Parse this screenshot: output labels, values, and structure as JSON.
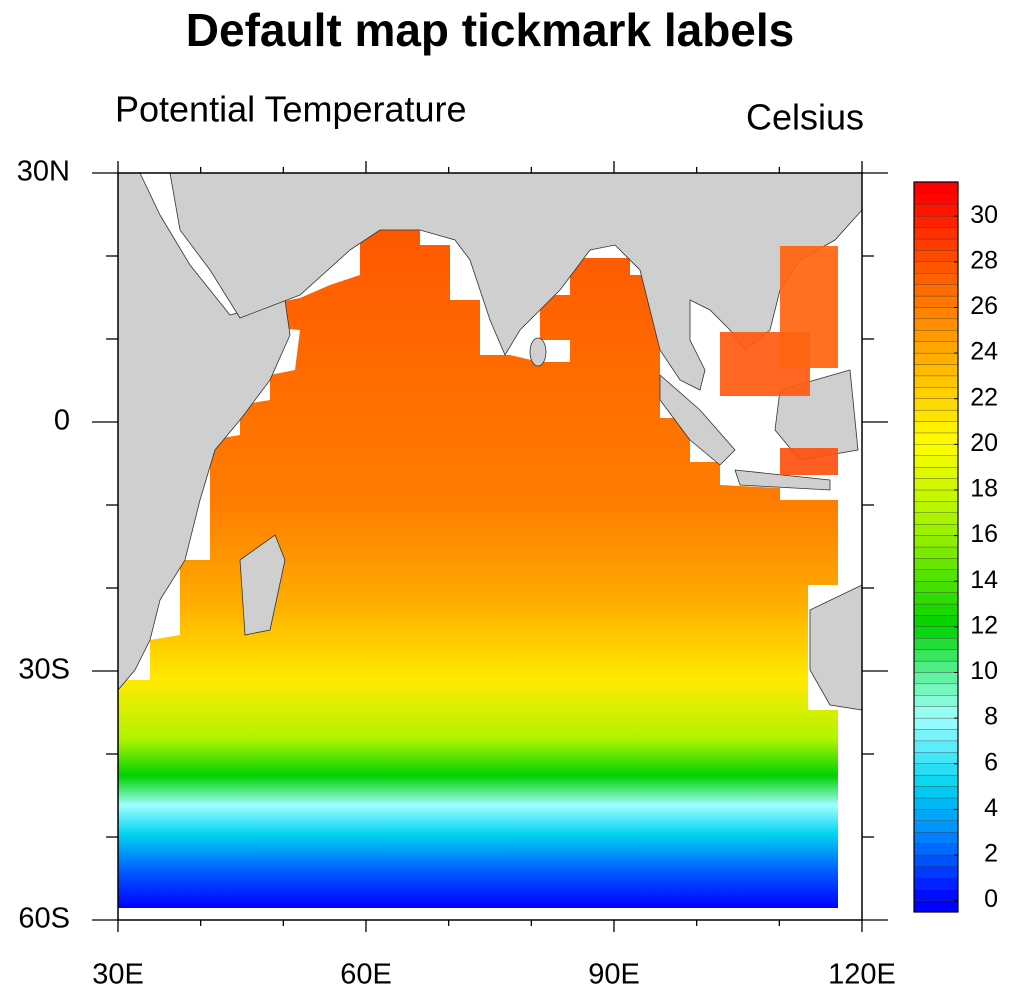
{
  "chart_data": {
    "type": "contour-map",
    "title": "Default map tickmark labels",
    "subtitle_left": "Potential Temperature",
    "subtitle_right": "Celsius",
    "xlim": [
      30,
      120
    ],
    "xticks": [
      {
        "value": 30,
        "label": "30E"
      },
      {
        "value": 60,
        "label": "60E"
      },
      {
        "value": 90,
        "label": "90E"
      },
      {
        "value": 120,
        "label": "120E"
      }
    ],
    "xminor": [
      40,
      50,
      70,
      80,
      100,
      110
    ],
    "ylim": [
      -60,
      30
    ],
    "yticks": [
      {
        "value": 30,
        "label": "30N"
      },
      0,
      {
        "value": -30,
        "label": "30S"
      },
      {
        "value": -60,
        "label": "60S"
      }
    ],
    "yminor": [
      20,
      10,
      -10,
      -20,
      -40,
      -50
    ],
    "colorbar_lim": [
      -0.5,
      31.5
    ],
    "colorbar_ticks": [
      0,
      2,
      4,
      6,
      8,
      10,
      12,
      14,
      16,
      18,
      20,
      22,
      24,
      26,
      28,
      30
    ]
  }
}
